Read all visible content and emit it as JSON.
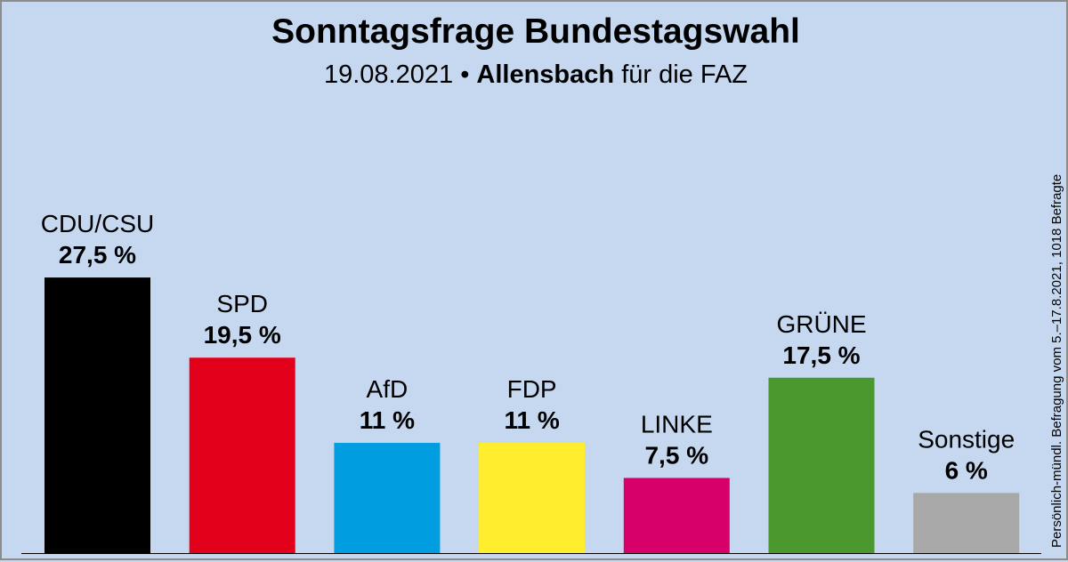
{
  "header": {
    "title": "Sonntagsfrage Bundestagswahl",
    "date": "19.08.2021",
    "bullet": "•",
    "institute": "Allensbach",
    "client": "für die FAZ"
  },
  "note": "Persönlich-mündl. Befragung vom 5.–17.8.2021, 1018 Befragte",
  "chart_data": {
    "type": "bar",
    "categories": [
      "CDU/CSU",
      "SPD",
      "AfD",
      "FDP",
      "LINKE",
      "GRÜNE",
      "Sonstige"
    ],
    "values": [
      27.5,
      19.5,
      11,
      11,
      7.5,
      17.5,
      6
    ],
    "value_labels": [
      "27,5 %",
      "19,5 %",
      "11 %",
      "11 %",
      "7,5 %",
      "17,5 %",
      "6 %"
    ],
    "colors": [
      "#000000",
      "#e2001a",
      "#009ee0",
      "#ffed2e",
      "#d7006b",
      "#4a982e",
      "#a8a8a8"
    ],
    "title": "Sonntagsfrage Bundestagswahl",
    "xlabel": "",
    "ylabel": "",
    "ylim": [
      0,
      30
    ],
    "grid": false,
    "legend": "none"
  }
}
